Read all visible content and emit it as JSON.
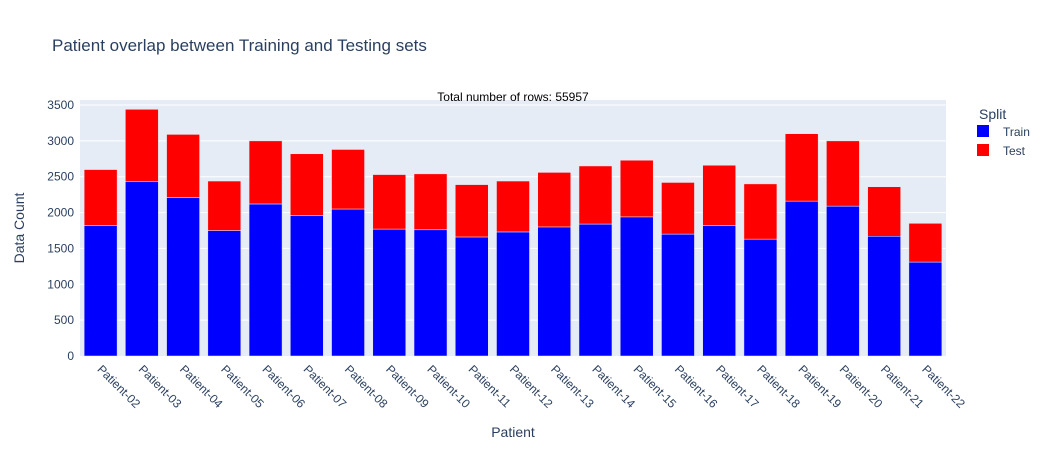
{
  "chart_data": {
    "type": "bar",
    "barmode": "stack",
    "title": "Patient overlap between Training and Testing sets",
    "annotation": "Total number of rows: 55957",
    "xlabel": "Patient",
    "ylabel": "Data Count",
    "ylim": [
      0,
      3570
    ],
    "yticks": [
      0,
      500,
      1000,
      1500,
      2000,
      2500,
      3000,
      3500
    ],
    "grid": true,
    "legend": {
      "title": "Split",
      "placement": "top-right"
    },
    "categories": [
      "Patient-02",
      "Patient-03",
      "Patient-04",
      "Patient-05",
      "Patient-06",
      "Patient-07",
      "Patient-08",
      "Patient-09",
      "Patient-10",
      "Patient-11",
      "Patient-12",
      "Patient-13",
      "Patient-14",
      "Patient-15",
      "Patient-16",
      "Patient-17",
      "Patient-18",
      "Patient-19",
      "Patient-20",
      "Patient-21",
      "Patient-22"
    ],
    "series": [
      {
        "name": "Train",
        "color": "#0000ff",
        "values": [
          1820,
          2430,
          2210,
          1750,
          2120,
          1960,
          2050,
          1770,
          1760,
          1660,
          1730,
          1800,
          1840,
          1940,
          1700,
          1820,
          1630,
          2160,
          2090,
          1670,
          1310
        ]
      },
      {
        "name": "Test",
        "color": "#ff0000",
        "values": [
          780,
          1010,
          880,
          690,
          880,
          860,
          830,
          760,
          780,
          730,
          710,
          760,
          810,
          790,
          720,
          840,
          770,
          940,
          910,
          690,
          540
        ]
      }
    ]
  }
}
